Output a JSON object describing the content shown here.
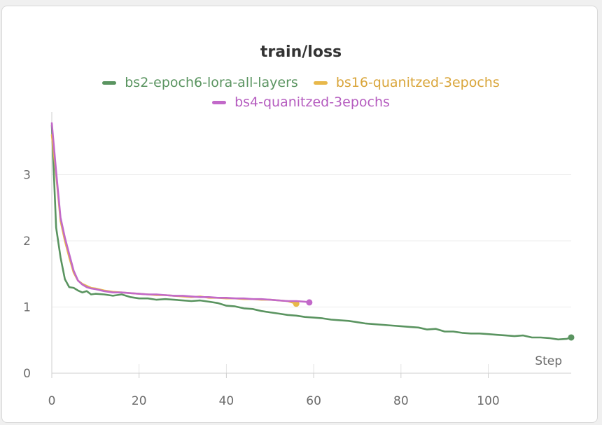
{
  "chart_data": {
    "type": "line",
    "title": "train/loss",
    "xlabel": "Step",
    "ylabel": "",
    "xlim": [
      0,
      119
    ],
    "ylim": [
      0,
      3.8
    ],
    "x_ticks": [
      "0",
      "20",
      "40",
      "60",
      "80",
      "100"
    ],
    "y_ticks": [
      "0",
      "1",
      "2",
      "3"
    ],
    "grid": true,
    "legend_position": "top",
    "series": [
      {
        "name": "bs2-epoch6-lora-all-layers",
        "color": "#5a9460",
        "x": [
          0,
          1,
          2,
          3,
          4,
          5,
          6,
          7,
          8,
          9,
          10,
          12,
          14,
          16,
          18,
          20,
          22,
          24,
          26,
          28,
          30,
          32,
          34,
          36,
          38,
          40,
          42,
          44,
          46,
          48,
          50,
          52,
          54,
          56,
          58,
          60,
          62,
          64,
          66,
          68,
          70,
          72,
          74,
          76,
          78,
          80,
          82,
          84,
          86,
          88,
          90,
          92,
          94,
          96,
          98,
          100,
          102,
          104,
          106,
          108,
          110,
          112,
          114,
          116,
          118,
          119
        ],
        "y": [
          3.75,
          2.2,
          1.75,
          1.42,
          1.3,
          1.29,
          1.25,
          1.22,
          1.24,
          1.19,
          1.2,
          1.19,
          1.17,
          1.19,
          1.15,
          1.13,
          1.13,
          1.11,
          1.12,
          1.11,
          1.1,
          1.09,
          1.1,
          1.08,
          1.06,
          1.02,
          1.01,
          0.98,
          0.97,
          0.94,
          0.92,
          0.9,
          0.88,
          0.87,
          0.85,
          0.84,
          0.83,
          0.81,
          0.8,
          0.79,
          0.77,
          0.75,
          0.74,
          0.73,
          0.72,
          0.71,
          0.7,
          0.69,
          0.66,
          0.67,
          0.63,
          0.63,
          0.61,
          0.6,
          0.6,
          0.59,
          0.58,
          0.57,
          0.56,
          0.57,
          0.54,
          0.54,
          0.53,
          0.51,
          0.52,
          0.54
        ]
      },
      {
        "name": "bs16-quanitzed-3epochs",
        "color": "#e8b84a",
        "x": [
          0,
          1,
          2,
          3,
          4,
          5,
          6,
          7,
          8,
          9,
          10,
          12,
          14,
          16,
          18,
          20,
          22,
          24,
          26,
          28,
          30,
          32,
          34,
          36,
          38,
          40,
          42,
          44,
          46,
          48,
          50,
          52,
          54,
          56
        ],
        "y": [
          3.6,
          3.0,
          2.3,
          2.0,
          1.75,
          1.52,
          1.4,
          1.35,
          1.32,
          1.29,
          1.28,
          1.25,
          1.23,
          1.22,
          1.21,
          1.2,
          1.19,
          1.18,
          1.18,
          1.17,
          1.16,
          1.15,
          1.16,
          1.14,
          1.14,
          1.13,
          1.13,
          1.12,
          1.12,
          1.11,
          1.11,
          1.1,
          1.09,
          1.05
        ]
      },
      {
        "name": "bs4-quanitzed-3epochs",
        "color": "#c269c9",
        "x": [
          0,
          1,
          2,
          3,
          4,
          5,
          6,
          7,
          8,
          9,
          10,
          12,
          14,
          16,
          18,
          20,
          22,
          24,
          26,
          28,
          30,
          32,
          34,
          36,
          38,
          40,
          42,
          44,
          46,
          48,
          50,
          52,
          54,
          56,
          58,
          59
        ],
        "y": [
          3.78,
          3.05,
          2.35,
          2.05,
          1.8,
          1.55,
          1.4,
          1.34,
          1.3,
          1.28,
          1.27,
          1.24,
          1.22,
          1.22,
          1.21,
          1.2,
          1.19,
          1.19,
          1.18,
          1.17,
          1.17,
          1.16,
          1.15,
          1.15,
          1.14,
          1.14,
          1.13,
          1.13,
          1.12,
          1.12,
          1.11,
          1.1,
          1.09,
          1.09,
          1.08,
          1.07
        ]
      }
    ]
  }
}
